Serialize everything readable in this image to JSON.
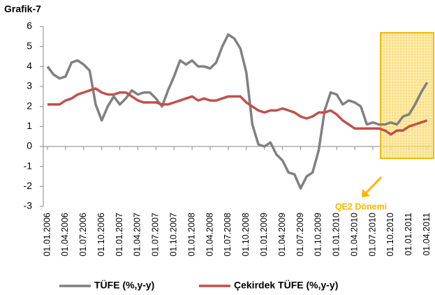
{
  "chart_data": {
    "type": "line",
    "title": "Grafik-7",
    "categories": [
      "01.01.2006",
      null,
      null,
      "01.04.2006",
      null,
      null,
      "01.07.2006",
      null,
      null,
      "01.10.2006",
      null,
      null,
      "01.01.2007",
      null,
      null,
      "01.04.2007",
      null,
      null,
      "01.07.2007",
      null,
      null,
      "01.10.2007",
      null,
      null,
      "01.01.2008",
      null,
      null,
      "01.04.2008",
      null,
      null,
      "01.07.2008",
      null,
      null,
      "01.10.2008",
      null,
      null,
      "01.01.2009",
      null,
      null,
      "01.04.2009",
      null,
      null,
      "01.07.2009",
      null,
      null,
      "01.10.2009",
      null,
      null,
      "01.01.2010",
      null,
      null,
      "01.04.2010",
      null,
      null,
      "01.07.2010",
      null,
      null,
      "01.10.2010",
      null,
      null,
      "01.01.2011",
      null,
      null,
      "01.04.2011"
    ],
    "series": [
      {
        "name": "TÜFE (%,y-y)",
        "color": "#808080",
        "values": [
          4.0,
          3.6,
          3.4,
          3.5,
          4.2,
          4.3,
          4.1,
          3.8,
          2.1,
          1.3,
          2.0,
          2.5,
          2.1,
          2.4,
          2.8,
          2.6,
          2.7,
          2.7,
          2.4,
          2.0,
          2.8,
          3.5,
          4.3,
          4.1,
          4.3,
          4.0,
          4.0,
          3.9,
          4.2,
          5.0,
          5.6,
          5.4,
          4.9,
          3.7,
          1.1,
          0.1,
          0.0,
          0.2,
          -0.4,
          -0.7,
          -1.3,
          -1.4,
          -2.1,
          -1.5,
          -1.3,
          -0.2,
          1.8,
          2.7,
          2.6,
          2.1,
          2.3,
          2.2,
          2.0,
          1.1,
          1.2,
          1.1,
          1.1,
          1.2,
          1.1,
          1.5,
          1.6,
          2.1,
          2.7,
          3.2
        ]
      },
      {
        "name": "Çekirdek TÜFE (%,y-y)",
        "color": "#c0504d",
        "values": [
          2.1,
          2.1,
          2.1,
          2.3,
          2.4,
          2.6,
          2.7,
          2.8,
          2.9,
          2.7,
          2.6,
          2.6,
          2.7,
          2.7,
          2.5,
          2.3,
          2.2,
          2.2,
          2.2,
          2.1,
          2.1,
          2.2,
          2.3,
          2.4,
          2.5,
          2.3,
          2.4,
          2.3,
          2.3,
          2.4,
          2.5,
          2.5,
          2.5,
          2.2,
          2.0,
          1.8,
          1.7,
          1.8,
          1.8,
          1.9,
          1.8,
          1.7,
          1.5,
          1.4,
          1.5,
          1.7,
          1.7,
          1.8,
          1.6,
          1.3,
          1.1,
          0.9,
          0.9,
          0.9,
          0.9,
          0.9,
          0.8,
          0.6,
          0.8,
          0.8,
          1.0,
          1.1,
          1.2,
          1.3
        ]
      }
    ],
    "ylim": [
      -3,
      6
    ],
    "yticks": [
      -3,
      -2,
      -1,
      0,
      1,
      2,
      3,
      4,
      5,
      6
    ],
    "annotations": [
      "QE2 Dönemi"
    ],
    "legend": "bottom"
  }
}
